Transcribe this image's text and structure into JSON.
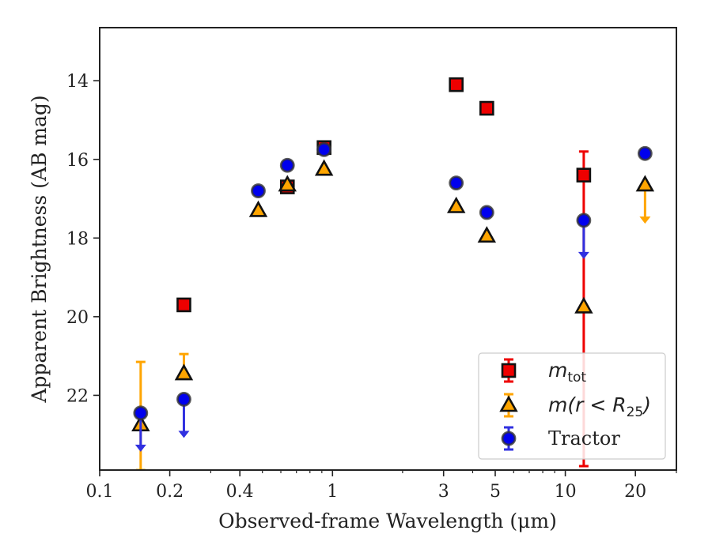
{
  "chart_data": {
    "type": "scatter",
    "xlabel": "Observed-frame Wavelength (μm)",
    "ylabel": "Apparent Brightness (AB mag)",
    "xscale": "log",
    "xlim": [
      0.1,
      30
    ],
    "ylim": [
      23.9,
      12.65
    ],
    "y_inverted": true,
    "x_ticks": [
      {
        "value": 0.1,
        "label": "0.1"
      },
      {
        "value": 0.2,
        "label": "0.2"
      },
      {
        "value": 0.4,
        "label": "0.4"
      },
      {
        "value": 1,
        "label": "1"
      },
      {
        "value": 3,
        "label": "3"
      },
      {
        "value": 5,
        "label": "5"
      },
      {
        "value": 10,
        "label": "10"
      },
      {
        "value": 20,
        "label": "20"
      }
    ],
    "y_ticks": [
      {
        "value": 14,
        "label": "14"
      },
      {
        "value": 16,
        "label": "16"
      },
      {
        "value": 18,
        "label": "18"
      },
      {
        "value": 20,
        "label": "20"
      },
      {
        "value": 22,
        "label": "22"
      }
    ],
    "legend_position": "lower right",
    "series": [
      {
        "name": "m_tot",
        "legend_main": "m",
        "legend_sub": "tot",
        "marker": "square",
        "color": "#ee0000",
        "edge": "#111111",
        "points": [
          {
            "x": 0.23,
            "y": 19.7
          },
          {
            "x": 0.64,
            "y": 16.7
          },
          {
            "x": 0.92,
            "y": 15.7
          },
          {
            "x": 3.4,
            "y": 14.1
          },
          {
            "x": 4.6,
            "y": 14.7
          },
          {
            "x": 12.0,
            "y": 16.4,
            "yerr": [
              0.6,
              7.4
            ]
          }
        ]
      },
      {
        "name": "m(r<R25)",
        "legend_main": "m(r < R",
        "legend_sub": "25",
        "legend_tail": ")",
        "marker": "triangle",
        "color": "#ffa500",
        "edge": "#111111",
        "points": [
          {
            "x": 0.15,
            "y": 22.75,
            "yerr": [
              1.6,
              1.15
            ]
          },
          {
            "x": 0.23,
            "y": 21.45,
            "yerr": [
              0.5,
              0
            ]
          },
          {
            "x": 0.48,
            "y": 17.3
          },
          {
            "x": 0.64,
            "y": 16.65
          },
          {
            "x": 0.92,
            "y": 16.25
          },
          {
            "x": 3.4,
            "y": 17.2
          },
          {
            "x": 4.6,
            "y": 17.95
          },
          {
            "x": 12.0,
            "y": 19.75
          },
          {
            "x": 22.0,
            "y": 16.65,
            "upper_limit": true
          }
        ]
      },
      {
        "name": "Tractor",
        "legend_main": "Tractor",
        "marker": "circle",
        "color": "#0000ee",
        "edge": "#333333",
        "points": [
          {
            "x": 0.15,
            "y": 22.45,
            "upper_limit": true
          },
          {
            "x": 0.23,
            "y": 22.1,
            "upper_limit": true
          },
          {
            "x": 0.48,
            "y": 16.8
          },
          {
            "x": 0.64,
            "y": 16.15
          },
          {
            "x": 0.92,
            "y": 15.75
          },
          {
            "x": 3.4,
            "y": 16.6
          },
          {
            "x": 4.6,
            "y": 17.35
          },
          {
            "x": 12.0,
            "y": 17.55,
            "upper_limit": true
          },
          {
            "x": 22.0,
            "y": 15.85
          }
        ]
      }
    ]
  }
}
